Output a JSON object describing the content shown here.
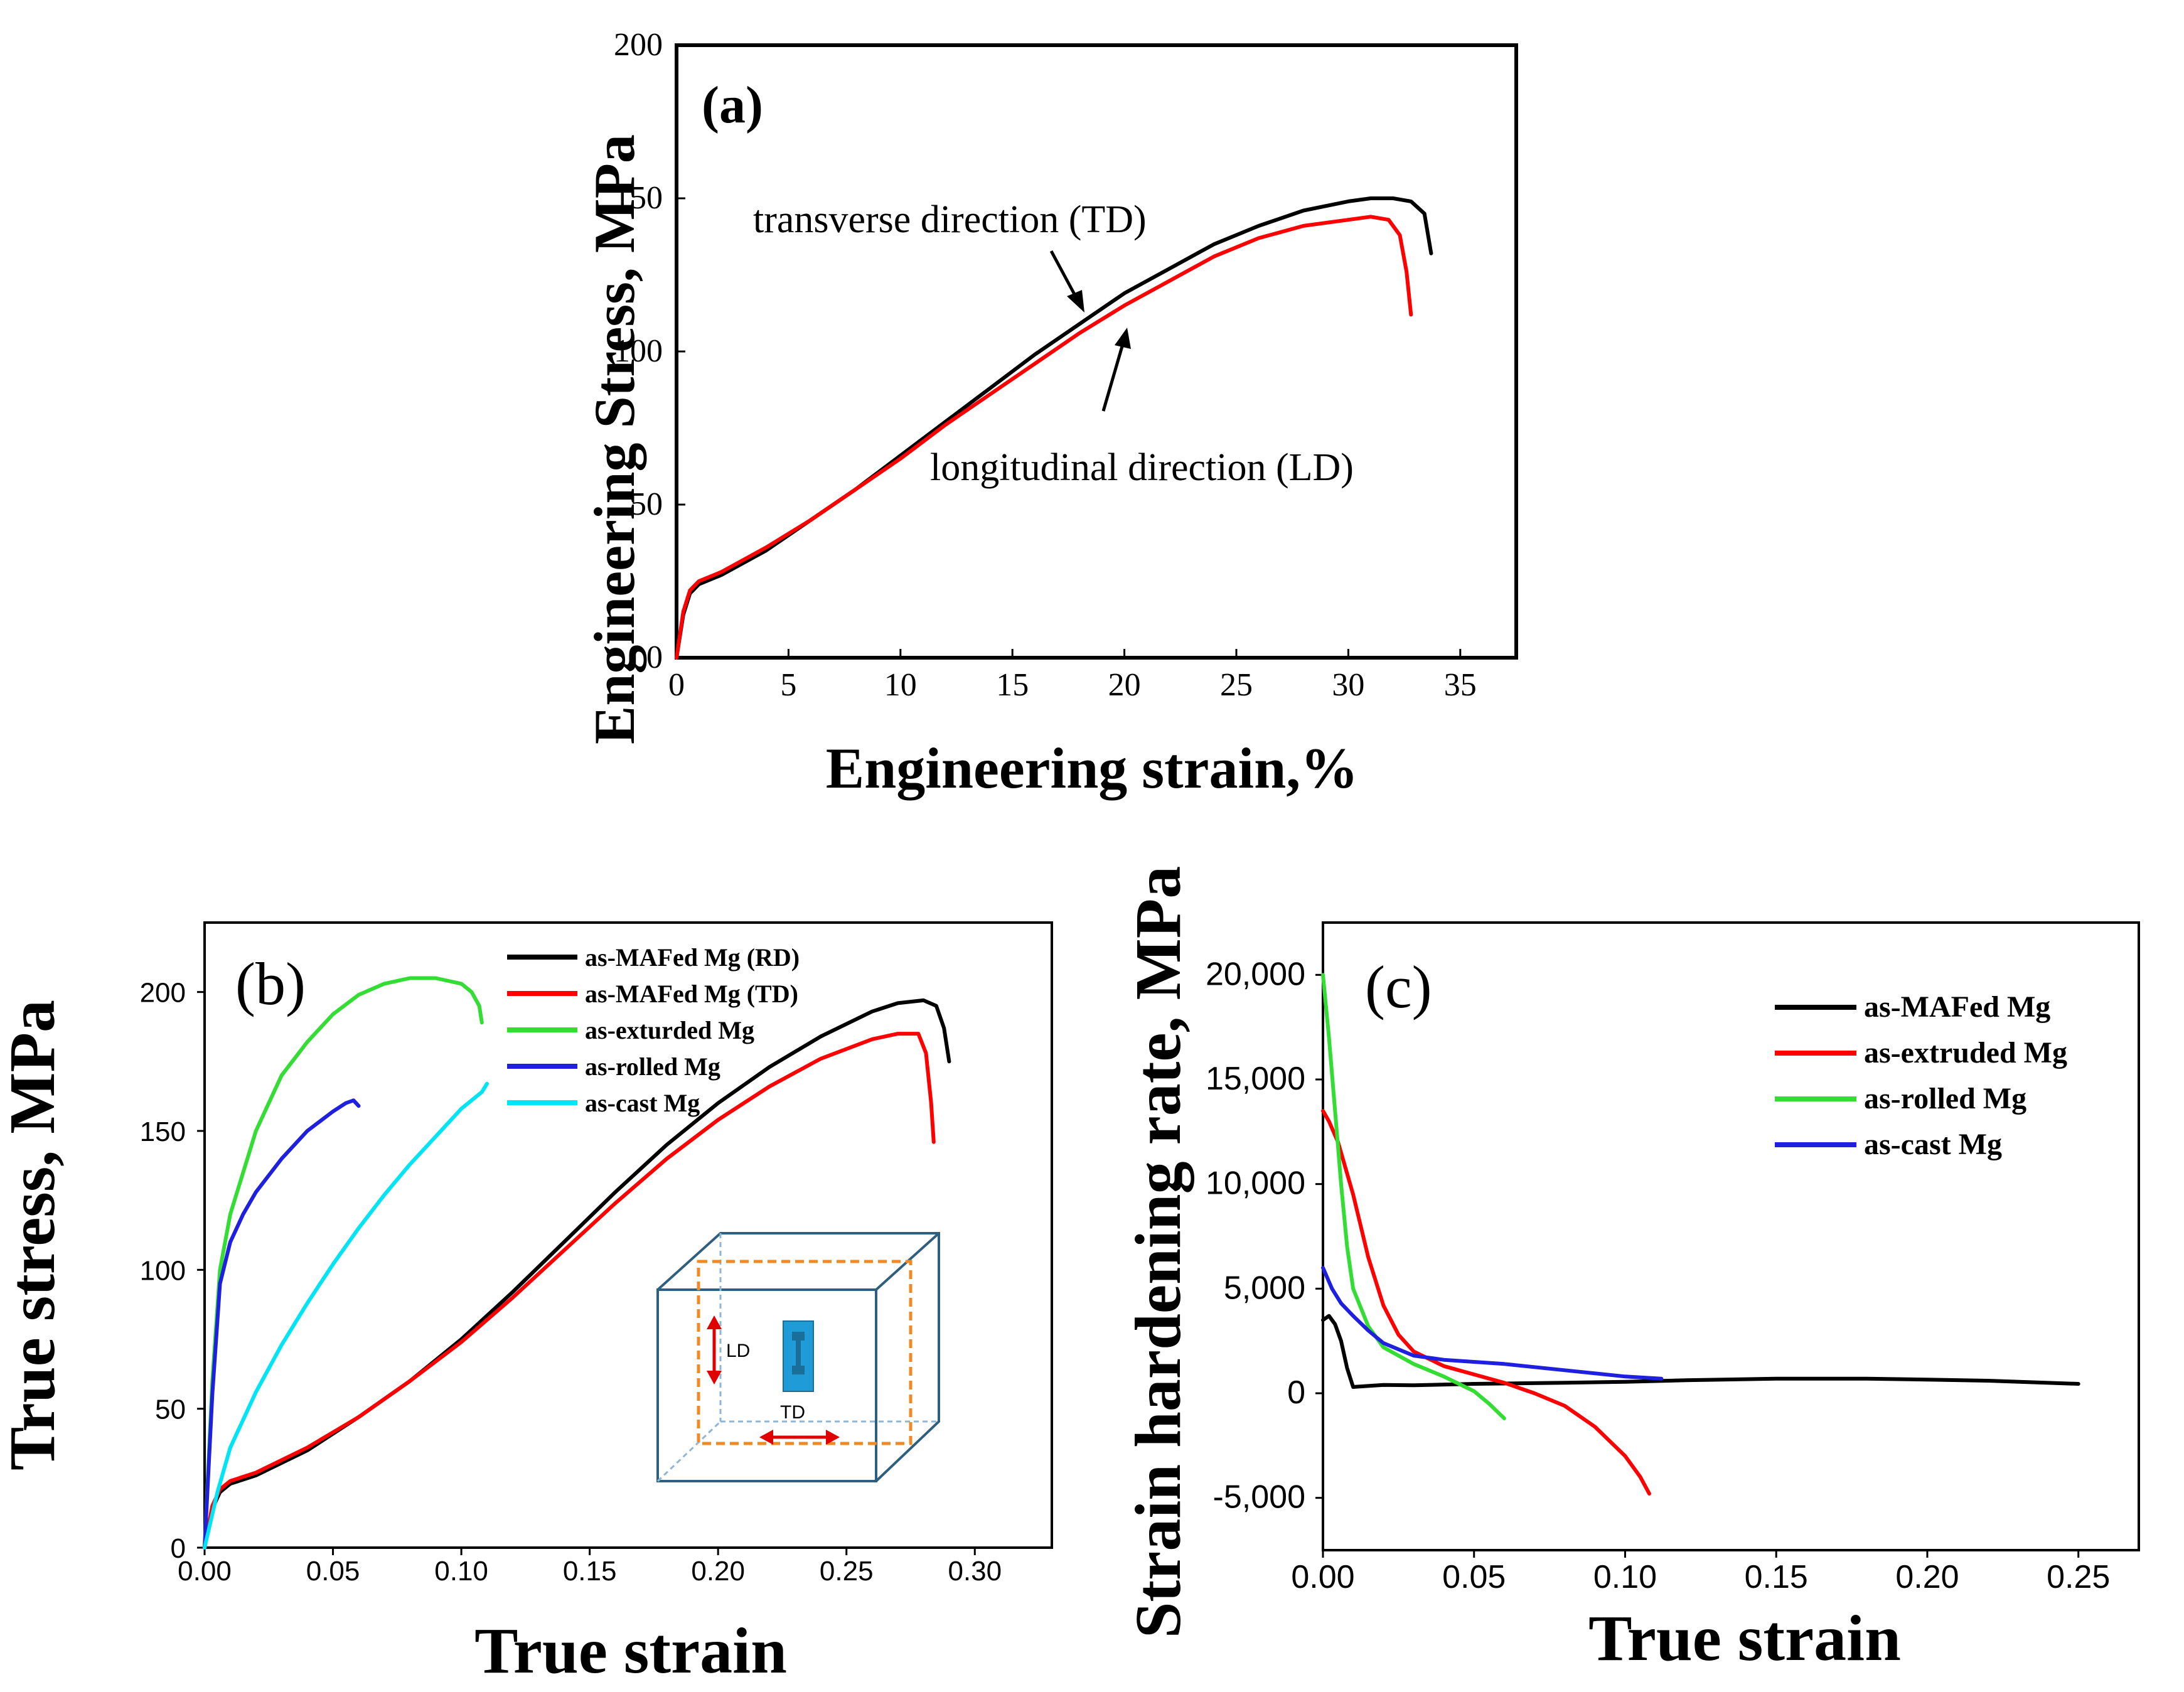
{
  "chart_data": [
    {
      "id": "a",
      "type": "line",
      "panel_label": "(a)",
      "xlabel": "Engineering strain,%",
      "ylabel": "Engineering Stress, MPa",
      "xlim": [
        0,
        37.5
      ],
      "ylim": [
        0,
        200
      ],
      "xticks": [
        "0",
        "5",
        "10",
        "15",
        "20",
        "25",
        "30",
        "35"
      ],
      "yticks": [
        "0",
        "50",
        "100",
        "150",
        "200"
      ],
      "annotations": [
        {
          "text": "transverse direction (TD)"
        },
        {
          "text": "longitudinal direction (LD)"
        }
      ],
      "series": [
        {
          "color": "#000000",
          "x": [
            0,
            0.3,
            0.6,
            1.0,
            2,
            4,
            6,
            8,
            10,
            12,
            14,
            16,
            18,
            20,
            22,
            24,
            26,
            28,
            30,
            31,
            32,
            32.8,
            33.4,
            33.7
          ],
          "y": [
            0,
            14,
            21,
            24,
            27,
            35,
            45,
            55,
            66,
            77,
            88,
            99,
            109,
            119,
            127,
            135,
            141,
            146,
            149,
            150,
            150,
            149,
            145,
            132
          ]
        },
        {
          "color": "#ff0000",
          "x": [
            0,
            0.3,
            0.6,
            1.0,
            2,
            4,
            6,
            8,
            10,
            12,
            14,
            16,
            18,
            20,
            22,
            24,
            26,
            28,
            30,
            31,
            31.8,
            32.3,
            32.6,
            32.8
          ],
          "y": [
            0,
            15,
            22,
            25,
            28,
            36,
            45,
            55,
            65,
            76,
            86,
            96,
            106,
            115,
            123,
            131,
            137,
            141,
            143,
            144,
            143,
            138,
            126,
            112
          ]
        }
      ]
    },
    {
      "id": "b",
      "type": "line",
      "panel_label": "(b)",
      "xlabel": "True strain",
      "ylabel": "True stress, MPa",
      "xlim": [
        0,
        0.33
      ],
      "ylim": [
        0,
        225
      ],
      "xticks": [
        "0.00",
        "0.05",
        "0.10",
        "0.15",
        "0.20",
        "0.25",
        "0.30"
      ],
      "yticks": [
        "0",
        "50",
        "100",
        "150",
        "200"
      ],
      "legend": [
        {
          "name": "as-MAFed Mg (RD)",
          "color": "#000000"
        },
        {
          "name": "as-MAFed Mg (TD)",
          "color": "#ff0000"
        },
        {
          "name": "as-exturded Mg",
          "color": "#33dd33"
        },
        {
          "name": "as-rolled Mg",
          "color": "#1f1fe0"
        },
        {
          "name": "as-cast Mg",
          "color": "#00e5f5"
        }
      ],
      "inset_labels": {
        "ld": "LD",
        "td": "TD"
      },
      "series": [
        {
          "color": "#000000",
          "x": [
            0,
            0.003,
            0.006,
            0.01,
            0.02,
            0.04,
            0.06,
            0.08,
            0.1,
            0.12,
            0.14,
            0.16,
            0.18,
            0.2,
            0.22,
            0.24,
            0.26,
            0.27,
            0.28,
            0.285,
            0.288,
            0.29
          ],
          "y": [
            0,
            14,
            20,
            23,
            26,
            35,
            47,
            60,
            75,
            92,
            110,
            128,
            145,
            160,
            173,
            184,
            193,
            196,
            197,
            195,
            187,
            175
          ]
        },
        {
          "color": "#ff0000",
          "x": [
            0,
            0.003,
            0.006,
            0.01,
            0.02,
            0.04,
            0.06,
            0.08,
            0.1,
            0.12,
            0.14,
            0.16,
            0.18,
            0.2,
            0.22,
            0.24,
            0.26,
            0.27,
            0.278,
            0.281,
            0.283,
            0.284
          ],
          "y": [
            0,
            15,
            21,
            24,
            27,
            36,
            47,
            60,
            74,
            90,
            107,
            124,
            140,
            154,
            166,
            176,
            183,
            185,
            185,
            178,
            160,
            146
          ]
        },
        {
          "color": "#33dd33",
          "x": [
            0,
            0.003,
            0.006,
            0.01,
            0.02,
            0.03,
            0.04,
            0.05,
            0.06,
            0.07,
            0.08,
            0.09,
            0.095,
            0.1,
            0.104,
            0.107,
            0.108
          ],
          "y": [
            0,
            60,
            100,
            120,
            150,
            170,
            182,
            192,
            199,
            203,
            205,
            205,
            204,
            203,
            200,
            195,
            189
          ]
        },
        {
          "color": "#1f1fe0",
          "x": [
            0,
            0.003,
            0.006,
            0.01,
            0.015,
            0.02,
            0.03,
            0.04,
            0.05,
            0.055,
            0.058,
            0.06
          ],
          "y": [
            0,
            55,
            95,
            110,
            120,
            128,
            140,
            150,
            157,
            160,
            161,
            159
          ]
        },
        {
          "color": "#00e5f5",
          "x": [
            0,
            0.005,
            0.01,
            0.02,
            0.03,
            0.04,
            0.05,
            0.06,
            0.07,
            0.08,
            0.09,
            0.1,
            0.108,
            0.11
          ],
          "y": [
            0,
            20,
            36,
            56,
            73,
            88,
            102,
            115,
            127,
            138,
            148,
            158,
            164,
            167
          ]
        }
      ]
    },
    {
      "id": "c",
      "type": "line",
      "panel_label": "(c)",
      "xlabel": "True strain",
      "ylabel": "Strain hardening rate, MPa",
      "xlim": [
        0,
        0.27
      ],
      "ylim": [
        -7500,
        22500
      ],
      "xticks": [
        "0.00",
        "0.05",
        "0.10",
        "0.15",
        "0.20",
        "0.25"
      ],
      "yticks": [
        "-5,000",
        "0",
        "5,000",
        "10,000",
        "15,000",
        "20,000"
      ],
      "legend": [
        {
          "name": "as-MAFed Mg",
          "color": "#000000"
        },
        {
          "name": "as-extruded Mg",
          "color": "#ff0000"
        },
        {
          "name": "as-rolled Mg",
          "color": "#33dd33"
        },
        {
          "name": "as-cast Mg",
          "color": "#1f1fe0"
        }
      ],
      "series": [
        {
          "color": "#000000",
          "x": [
            0,
            0.002,
            0.004,
            0.006,
            0.008,
            0.01,
            0.02,
            0.03,
            0.05,
            0.08,
            0.1,
            0.12,
            0.15,
            0.18,
            0.2,
            0.22,
            0.25
          ],
          "y": [
            3500,
            3700,
            3300,
            2500,
            1200,
            300,
            400,
            380,
            450,
            500,
            550,
            620,
            700,
            700,
            650,
            600,
            450
          ]
        },
        {
          "color": "#ff0000",
          "x": [
            0,
            0.002,
            0.005,
            0.01,
            0.015,
            0.02,
            0.025,
            0.03,
            0.04,
            0.05,
            0.06,
            0.07,
            0.08,
            0.09,
            0.1,
            0.105,
            0.108
          ],
          "y": [
            13500,
            13000,
            12000,
            9500,
            6500,
            4200,
            2800,
            2000,
            1300,
            900,
            500,
            0,
            -600,
            -1600,
            -3000,
            -4000,
            -4800
          ]
        },
        {
          "color": "#33dd33",
          "x": [
            0,
            0.002,
            0.004,
            0.006,
            0.008,
            0.01,
            0.015,
            0.02,
            0.03,
            0.04,
            0.05,
            0.055,
            0.06
          ],
          "y": [
            20000,
            17000,
            13500,
            10000,
            7000,
            5000,
            3200,
            2200,
            1400,
            800,
            100,
            -500,
            -1200
          ]
        },
        {
          "color": "#1f1fe0",
          "x": [
            0,
            0.003,
            0.006,
            0.01,
            0.015,
            0.02,
            0.03,
            0.04,
            0.06,
            0.08,
            0.1,
            0.112
          ],
          "y": [
            6000,
            5000,
            4300,
            3700,
            3000,
            2400,
            1800,
            1600,
            1400,
            1100,
            800,
            700
          ]
        }
      ]
    }
  ]
}
